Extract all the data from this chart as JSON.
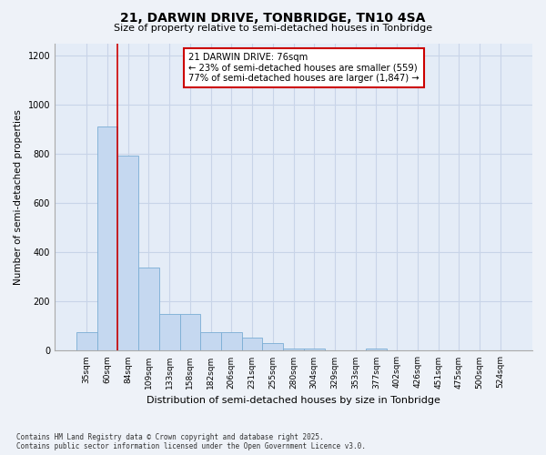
{
  "title1": "21, DARWIN DRIVE, TONBRIDGE, TN10 4SA",
  "title2": "Size of property relative to semi-detached houses in Tonbridge",
  "xlabel": "Distribution of semi-detached houses by size in Tonbridge",
  "ylabel": "Number of semi-detached properties",
  "categories": [
    "35sqm",
    "60sqm",
    "84sqm",
    "109sqm",
    "133sqm",
    "158sqm",
    "182sqm",
    "206sqm",
    "231sqm",
    "255sqm",
    "280sqm",
    "304sqm",
    "329sqm",
    "353sqm",
    "377sqm",
    "402sqm",
    "426sqm",
    "451sqm",
    "475sqm",
    "500sqm",
    "524sqm"
  ],
  "values": [
    75,
    910,
    795,
    340,
    150,
    150,
    75,
    75,
    55,
    30,
    10,
    10,
    0,
    0,
    10,
    0,
    0,
    0,
    0,
    0,
    0
  ],
  "bar_color": "#c5d8f0",
  "bar_edge_color": "#7aadd4",
  "vline_color": "#cc0000",
  "vline_pos": 1.5,
  "annotation_title": "21 DARWIN DRIVE: 76sqm",
  "annotation_line1": "← 23% of semi-detached houses are smaller (559)",
  "annotation_line2": "77% of semi-detached houses are larger (1,847) →",
  "annotation_box_color": "#cc0000",
  "ylim": [
    0,
    1250
  ],
  "yticks": [
    0,
    200,
    400,
    600,
    800,
    1000,
    1200
  ],
  "footnote1": "Contains HM Land Registry data © Crown copyright and database right 2025.",
  "footnote2": "Contains public sector information licensed under the Open Government Licence v3.0.",
  "bg_color": "#eef2f8",
  "plot_bg_color": "#e4ecf7",
  "grid_color": "#c8d4e8"
}
